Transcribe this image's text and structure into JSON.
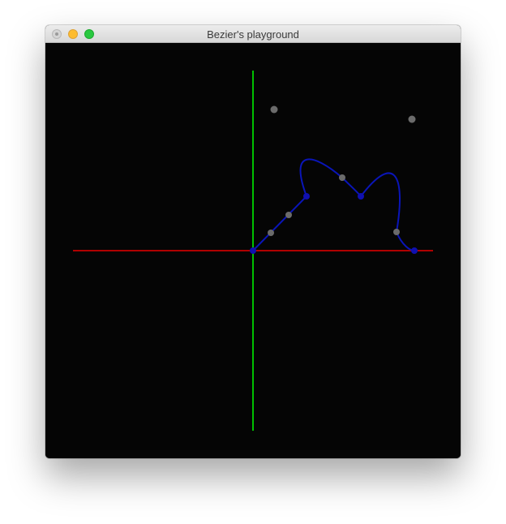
{
  "window": {
    "title": "Bezier's playground"
  },
  "controls": {
    "close": "close-button",
    "minimize": "minimize-button",
    "zoom": "zoom-button"
  },
  "colors": {
    "background": "#050505",
    "x_axis": "#b00000",
    "y_axis": "#00c000",
    "curve": "#0a15b8",
    "anchor_point": "#1010b0",
    "control_point": "#6b6b6b"
  }
}
